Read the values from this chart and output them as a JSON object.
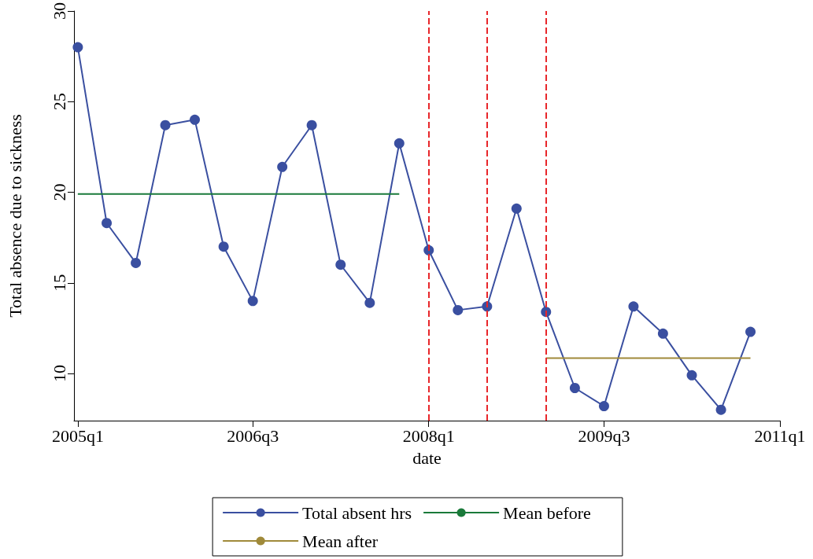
{
  "chart_data": {
    "type": "line",
    "xlabel": "date",
    "ylabel": "Total absence due to sickness",
    "xlim": [
      "2004-12-20",
      "2011-01"
    ],
    "xticks": [
      {
        "value": "2005-01",
        "label": "2005q1"
      },
      {
        "value": "2006-07",
        "label": "2006q3"
      },
      {
        "value": "2008-01",
        "label": "2008q1"
      },
      {
        "value": "2009-07",
        "label": "2009q3"
      },
      {
        "value": "2011-01",
        "label": "2011q1"
      }
    ],
    "ylim": [
      7.4,
      30
    ],
    "yticks": [
      10,
      15,
      20,
      25,
      30
    ],
    "grid": false,
    "legend": "bottom",
    "series": [
      {
        "name": "Total absent hrs",
        "color": "#3a4fa0",
        "marker": "circle",
        "x": [
          "2005-01",
          "2005-04",
          "2005-07",
          "2005-10",
          "2006-01",
          "2006-04",
          "2006-07",
          "2006-10",
          "2007-01",
          "2007-04",
          "2007-07",
          "2007-10",
          "2008-01",
          "2008-04",
          "2008-07",
          "2008-10",
          "2009-01",
          "2009-04",
          "2009-07",
          "2009-10",
          "2010-01",
          "2010-04",
          "2010-07",
          "2010-10"
        ],
        "values": [
          28.0,
          18.3,
          16.1,
          23.7,
          24.0,
          17.0,
          14.0,
          21.4,
          23.7,
          16.0,
          13.9,
          22.7,
          16.8,
          13.5,
          13.7,
          19.1,
          13.4,
          9.2,
          8.2,
          13.7,
          12.2,
          9.9,
          8.0,
          12.3
        ]
      },
      {
        "name": "Mean before",
        "color": "#1a7a3a",
        "marker": "none",
        "x": [
          "2005-01",
          "2007-10"
        ],
        "values": [
          19.9,
          19.9
        ]
      },
      {
        "name": "Mean after",
        "color": "#a08a3a",
        "marker": "none",
        "x": [
          "2009-01",
          "2010-10"
        ],
        "values": [
          10.85,
          10.85
        ]
      }
    ],
    "ref_lines": [
      {
        "axis": "x",
        "value": "2008-01",
        "color": "#e8262a",
        "line_style": "dashed"
      },
      {
        "axis": "x",
        "value": "2008-07",
        "color": "#e8262a",
        "line_style": "dashed"
      },
      {
        "axis": "x",
        "value": "2009-01",
        "color": "#e8262a",
        "line_style": "dashed"
      }
    ]
  }
}
